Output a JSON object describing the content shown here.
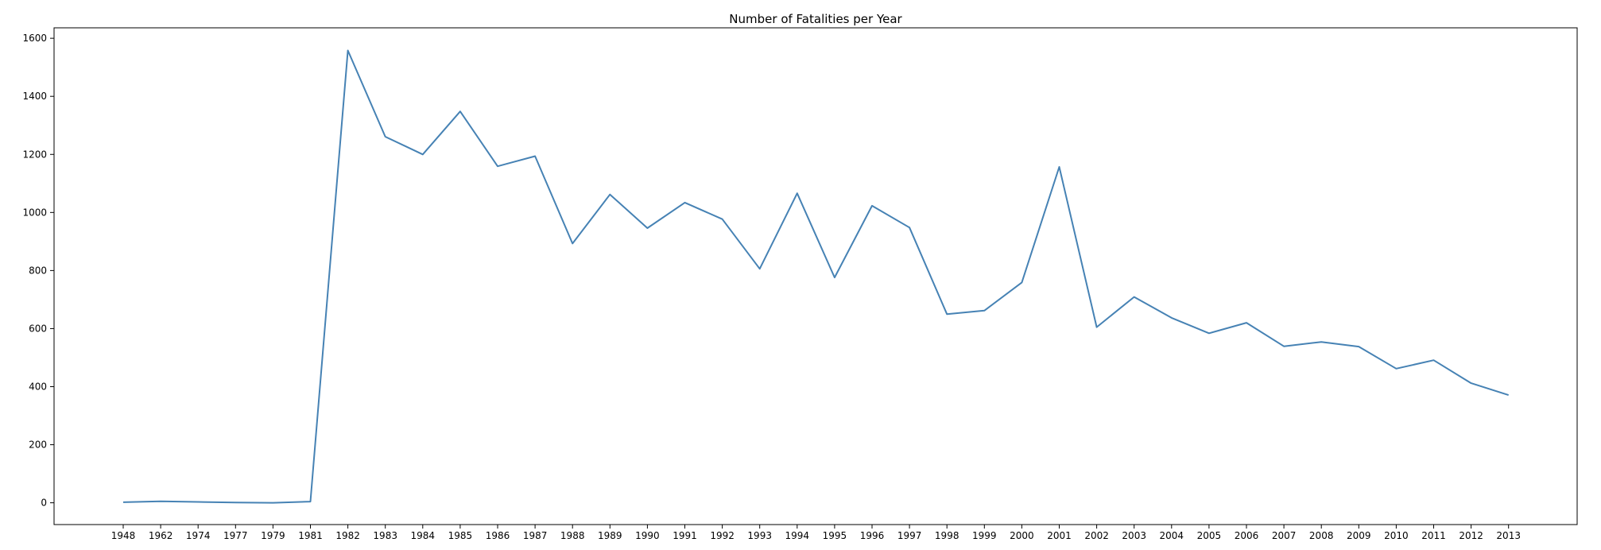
{
  "chart_data": {
    "type": "line",
    "title": "Number of Fatalities per Year",
    "xlabel": "",
    "ylabel": "",
    "categories": [
      "1948",
      "1962",
      "1974",
      "1977",
      "1979",
      "1981",
      "1982",
      "1983",
      "1984",
      "1985",
      "1986",
      "1987",
      "1988",
      "1989",
      "1990",
      "1991",
      "1992",
      "1993",
      "1994",
      "1995",
      "1996",
      "1997",
      "1998",
      "1999",
      "2000",
      "2001",
      "2002",
      "2003",
      "2004",
      "2005",
      "2006",
      "2007",
      "2008",
      "2009",
      "2010",
      "2011",
      "2012",
      "2013"
    ],
    "series": [
      {
        "name": "",
        "values": [
          2,
          5,
          3,
          1,
          0,
          4,
          1558,
          1261,
          1200,
          1348,
          1159,
          1194,
          893,
          1062,
          946,
          1034,
          977,
          806,
          1066,
          776,
          1023,
          948,
          650,
          662,
          759,
          1157,
          605,
          709,
          637,
          584,
          620,
          539,
          554,
          538,
          462,
          491,
          412,
          371
        ]
      }
    ],
    "ylim": [
      -75,
      1636
    ],
    "yticks": [
      0,
      200,
      400,
      600,
      800,
      1000,
      1200,
      1400,
      1600
    ],
    "grid": false,
    "line_color": "#4682b4",
    "legend": "none"
  }
}
